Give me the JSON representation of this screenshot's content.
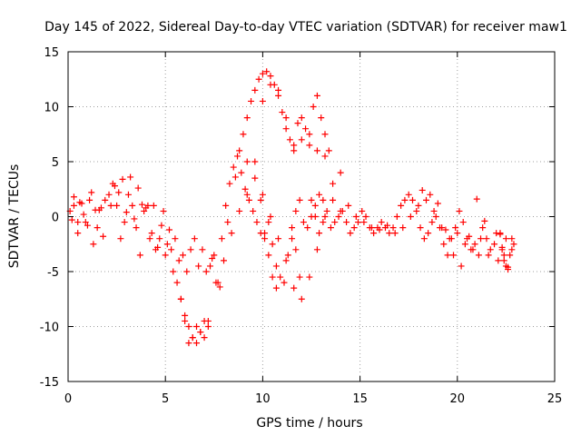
{
  "chart_data": {
    "type": "scatter",
    "title": "Day 145 of 2022, Sidereal Day-to-day VTEC variation (SDTVAR) for receiver maw1",
    "xlabel": "GPS time / hours",
    "ylabel": "SDTVAR / TECUs",
    "xlim": [
      0,
      25
    ],
    "ylim": [
      -15,
      15
    ],
    "xticks": [
      0,
      5,
      10,
      15,
      20,
      25
    ],
    "yticks": [
      -15,
      -10,
      -5,
      0,
      5,
      10,
      15
    ],
    "xtick_labels": [
      "0",
      "5",
      "10",
      "15",
      "20",
      "25"
    ],
    "ytick_labels": [
      "-15",
      "-10",
      "-5",
      "0",
      "5",
      "10",
      "15"
    ],
    "grid": true,
    "marker": "+",
    "color": "#ff0000",
    "series": [
      {
        "name": "maw1",
        "x": [
          0.1,
          0.3,
          0.5,
          0.7,
          0.9,
          1.1,
          1.3,
          1.5,
          1.7,
          1.9,
          2.1,
          2.3,
          2.5,
          2.7,
          2.9,
          3.1,
          3.3,
          3.5,
          3.7,
          3.9,
          4.1,
          4.3,
          4.5,
          4.7,
          4.9,
          5.1,
          5.3,
          5.5,
          5.7,
          5.9,
          6.1,
          6.3,
          6.5,
          6.7,
          6.9,
          7.1,
          7.3,
          7.5,
          7.7,
          7.9,
          8.1,
          8.3,
          8.5,
          8.7,
          8.9,
          9.1,
          9.3,
          9.5,
          9.7,
          9.9,
          10.1,
          10.3,
          10.5,
          10.7,
          10.9,
          11.1,
          11.3,
          11.5,
          11.7,
          11.9,
          12.1,
          12.3,
          12.5,
          12.7,
          12.9,
          13.1,
          13.3,
          13.5,
          13.7,
          13.9,
          14.1,
          14.3,
          14.5,
          14.7,
          14.9,
          15.1,
          15.3,
          15.5,
          15.7,
          15.9,
          16.1,
          16.3,
          16.5,
          16.7,
          16.9,
          17.1,
          17.3,
          17.5,
          17.7,
          17.9,
          18.1,
          18.3,
          18.5,
          18.7,
          18.9,
          19.1,
          19.3,
          19.5,
          19.7,
          19.9,
          20.1,
          20.3,
          20.5,
          20.7,
          20.9,
          21.1,
          21.3,
          21.5,
          21.7,
          21.9,
          22.1,
          22.3,
          22.5,
          22.7,
          22.9,
          0.2,
          0.6,
          1.0,
          1.4,
          1.8,
          2.2,
          2.6,
          3.0,
          3.4,
          3.8,
          4.2,
          4.6,
          5.0,
          5.4,
          5.8,
          6.0,
          6.2,
          6.4,
          6.6,
          6.8,
          7.0,
          7.2,
          7.6,
          8.0,
          8.4,
          8.8,
          9.2,
          9.6,
          10.0,
          10.4,
          10.8,
          11.2,
          11.6,
          12.0,
          12.4,
          12.8,
          13.2,
          13.6,
          14.0,
          14.4,
          14.8,
          15.2,
          15.6,
          16.0,
          16.4,
          16.8,
          17.2,
          17.6,
          18.0,
          18.4,
          18.8,
          19.2,
          19.6,
          20.0,
          20.4,
          20.8,
          21.2,
          21.6,
          22.0,
          22.4,
          22.8,
          8.8,
          9.0,
          9.2,
          9.4,
          9.6,
          9.8,
          10.0,
          10.2,
          10.4,
          10.6,
          10.8,
          11.0,
          11.2,
          11.4,
          11.6,
          11.8,
          12.0,
          12.2,
          12.4,
          12.6,
          12.8,
          13.0,
          13.2,
          13.4,
          5.6,
          5.8,
          6.0,
          6.2,
          6.4,
          6.6,
          6.8,
          7.0,
          7.2,
          9.2,
          9.6,
          10.0,
          10.4,
          10.8,
          11.2,
          11.6,
          12.0,
          12.4,
          12.8,
          13.2,
          13.6,
          14.0,
          0.3,
          0.5,
          0.8,
          1.2,
          1.6,
          2.4,
          2.8,
          3.2,
          3.6,
          4.0,
          4.4,
          4.8,
          5.2,
          7.4,
          7.8,
          8.2,
          8.6,
          18.2,
          18.6,
          19.0,
          19.4,
          19.8,
          20.2,
          20.6,
          21.0,
          21.4,
          22.2,
          22.6,
          9.9,
          10.1,
          10.3,
          10.5,
          10.7,
          11.5,
          11.7,
          11.9,
          12.5,
          12.7,
          12.9,
          13.1,
          22.2,
          22.4,
          22.6,
          22.8,
          22.5,
          22.3
        ],
        "y": [
          0.5,
          1.0,
          -1.5,
          1.2,
          -0.5,
          1.5,
          -2.5,
          -1.0,
          0.8,
          1.5,
          2.0,
          3.0,
          1.0,
          -2.0,
          -0.5,
          2.0,
          1.0,
          -1.0,
          -3.5,
          0.5,
          1.0,
          -1.5,
          -3.0,
          -2.0,
          0.5,
          -2.5,
          -3.0,
          -2.0,
          -4.0,
          -3.5,
          -5.0,
          -3.0,
          -2.0,
          -4.5,
          -3.0,
          -5.0,
          -4.5,
          -3.5,
          -6.0,
          -2.0,
          1.0,
          3.0,
          4.5,
          5.5,
          4.0,
          2.5,
          1.5,
          0.5,
          -0.5,
          -1.5,
          -2.0,
          -0.5,
          -2.5,
          -4.5,
          -5.5,
          -6.0,
          -3.5,
          -2.0,
          0.5,
          1.5,
          -0.5,
          -1.0,
          0.0,
          1.0,
          2.0,
          1.5,
          0.5,
          -1.0,
          -0.5,
          0.0,
          0.5,
          -0.5,
          -1.5,
          -1.0,
          -0.5,
          0.5,
          0.0,
          -1.0,
          -1.5,
          -1.0,
          -0.5,
          -1.0,
          -1.5,
          -1.0,
          0.0,
          1.0,
          1.5,
          2.0,
          1.5,
          0.5,
          -1.0,
          -2.0,
          -1.5,
          -0.5,
          0.0,
          -1.0,
          -2.5,
          -3.5,
          -2.0,
          -1.0,
          0.5,
          -0.5,
          -2.0,
          -3.0,
          -2.5,
          -3.5,
          -1.0,
          -2.0,
          -3.0,
          -2.5,
          -4.0,
          -3.0,
          -2.0,
          -3.5,
          -2.5,
          -0.3,
          1.3,
          -0.8,
          0.6,
          -1.8,
          1.0,
          2.2,
          0.4,
          -0.2,
          1.1,
          -2.0,
          -2.8,
          -3.5,
          -5.0,
          -7.5,
          -9.5,
          -11.5,
          -11.0,
          -10.0,
          -10.5,
          -11.0,
          -9.5,
          -6.0,
          -4.0,
          -1.5,
          0.5,
          2.0,
          5.0,
          10.5,
          12.0,
          11.5,
          9.0,
          6.0,
          7.0,
          6.5,
          6.0,
          5.5,
          3.0,
          0.5,
          1.0,
          0.0,
          -0.5,
          -1.0,
          -1.2,
          -0.8,
          -1.5,
          -1.0,
          0.0,
          1.0,
          1.5,
          0.5,
          -1.0,
          -2.0,
          -1.5,
          -2.5,
          -3.0,
          -2.0,
          -3.5,
          -1.5,
          -4.0,
          -3.0,
          6.0,
          7.5,
          9.0,
          10.5,
          11.5,
          12.5,
          13.0,
          13.2,
          12.8,
          12.0,
          11.0,
          9.5,
          8.0,
          7.0,
          6.5,
          8.5,
          9.0,
          8.0,
          7.5,
          10.0,
          11.0,
          9.0,
          7.5,
          6.0,
          -6.0,
          -7.5,
          -9.0,
          -10.0,
          -11.0,
          -11.5,
          -10.5,
          -9.5,
          -10.0,
          5.0,
          3.5,
          2.0,
          0.0,
          -2.0,
          -4.0,
          -6.5,
          -7.5,
          -5.5,
          -3.0,
          0.0,
          1.5,
          4.0,
          1.8,
          -0.5,
          0.2,
          2.2,
          0.6,
          2.8,
          3.4,
          3.6,
          2.6,
          0.8,
          1.0,
          -0.8,
          -1.2,
          -3.8,
          -6.4,
          -0.5,
          3.6,
          2.4,
          2.0,
          1.2,
          -1.2,
          -3.5,
          -4.5,
          -1.8,
          1.6,
          -0.4,
          -1.6,
          -4.6,
          1.5,
          -1.5,
          -3.5,
          -5.5,
          -6.5,
          -1.0,
          -3.0,
          -5.5,
          1.5,
          0.0,
          -1.5,
          -0.5,
          -1.5,
          -3.5,
          -4.8,
          -2.0,
          -4.5,
          -2.8
        ]
      }
    ]
  }
}
